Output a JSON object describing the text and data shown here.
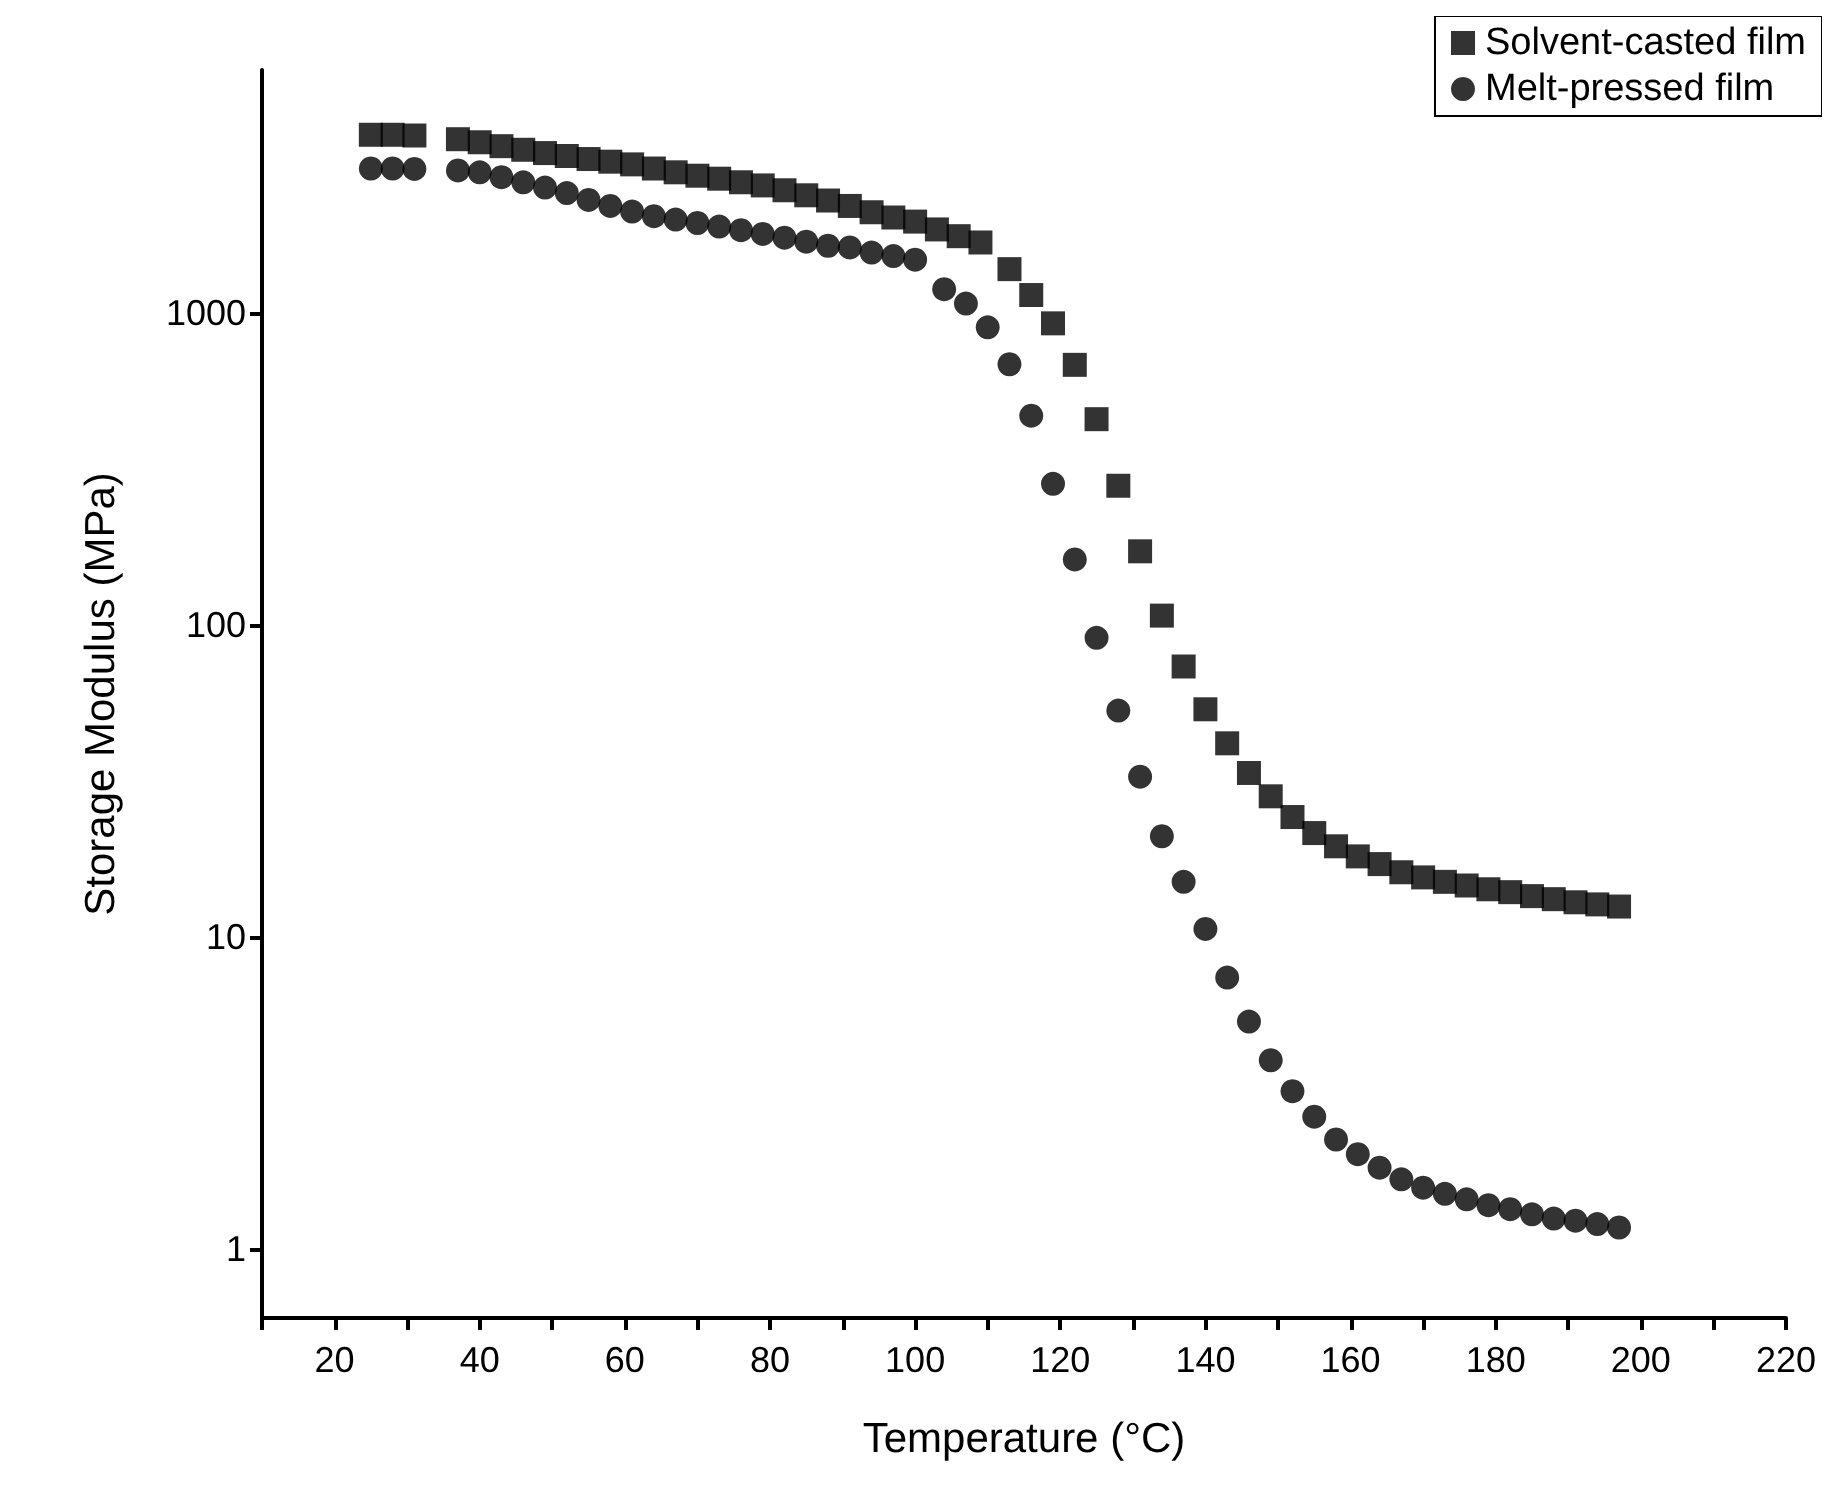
{
  "chart_data": {
    "type": "scatter",
    "xlabel": "Temperature (°C)",
    "ylabel": "Storage Modulus (MPa)",
    "xlim": [
      10,
      220
    ],
    "xticks": [
      {
        "value": 10,
        "label": null
      },
      20,
      {
        "value": 30,
        "label": null
      },
      40,
      {
        "value": 50,
        "label": null
      },
      60,
      {
        "value": 70,
        "label": null
      },
      80,
      {
        "value": 90,
        "label": null
      },
      100,
      {
        "value": 110,
        "label": null
      },
      120,
      {
        "value": 130,
        "label": null
      },
      140,
      {
        "value": 150,
        "label": null
      },
      160,
      {
        "value": 170,
        "label": null
      },
      180,
      {
        "value": 190,
        "label": null
      },
      200,
      {
        "value": 210,
        "label": null
      },
      220
    ],
    "ylim": [
      0.6,
      6000
    ],
    "yticks": [
      1,
      10,
      100,
      1000
    ],
    "log": "y",
    "legend": "top right",
    "series": [
      {
        "name": "Solvent-casted film",
        "color": "#000000",
        "marker": "square",
        "x": [
          25,
          28,
          31,
          37,
          40,
          43,
          46,
          49,
          52,
          55,
          58,
          61,
          64,
          67,
          70,
          73,
          76,
          79,
          82,
          85,
          88,
          91,
          94,
          97,
          100,
          103,
          106,
          109,
          113,
          116,
          119,
          122,
          125,
          128,
          131,
          134,
          137,
          140,
          143,
          146,
          149,
          152,
          155,
          158,
          161,
          164,
          167,
          170,
          173,
          176,
          179,
          182,
          185,
          188,
          191,
          194,
          197
        ],
        "values": [
          3720,
          3720,
          3700,
          3600,
          3520,
          3420,
          3330,
          3250,
          3180,
          3110,
          3050,
          2990,
          2900,
          2820,
          2750,
          2690,
          2620,
          2560,
          2470,
          2380,
          2290,
          2200,
          2100,
          2020,
          1960,
          1850,
          1760,
          1680,
          1380,
          1140,
          925,
          681,
          456,
          279,
          172,
          107,
          73.5,
          53.6,
          41.7,
          33.5,
          28.2,
          24.2,
          21.5,
          19.5,
          18.1,
          17.1,
          16.1,
          15.5,
          15.0,
          14.6,
          14.2,
          13.9,
          13.5,
          13.2,
          12.9,
          12.7,
          12.5
        ]
      },
      {
        "name": "Melt-pressed film",
        "color": "#000000",
        "marker": "circle",
        "x": [
          25,
          28,
          31,
          37,
          40,
          43,
          46,
          49,
          52,
          55,
          58,
          61,
          64,
          67,
          70,
          73,
          76,
          79,
          82,
          85,
          88,
          91,
          94,
          97,
          100,
          104,
          107,
          110,
          113,
          116,
          119,
          122,
          125,
          128,
          131,
          134,
          137,
          140,
          143,
          146,
          149,
          152,
          155,
          158,
          161,
          164,
          167,
          170,
          173,
          176,
          179,
          182,
          185,
          188,
          191,
          194,
          197
        ],
        "values": [
          2900,
          2900,
          2890,
          2860,
          2820,
          2720,
          2620,
          2520,
          2420,
          2300,
          2200,
          2110,
          2040,
          1990,
          1940,
          1890,
          1840,
          1790,
          1740,
          1690,
          1640,
          1620,
          1560,
          1520,
          1480,
          1190,
          1070,
          898,
          684,
          468,
          283,
          162,
          90.8,
          53.1,
          32.6,
          21.0,
          15.0,
          10.6,
          7.4,
          5.35,
          4.02,
          3.2,
          2.65,
          2.24,
          2.01,
          1.82,
          1.67,
          1.57,
          1.5,
          1.44,
          1.38,
          1.34,
          1.29,
          1.25,
          1.23,
          1.2,
          1.17
        ]
      }
    ]
  }
}
